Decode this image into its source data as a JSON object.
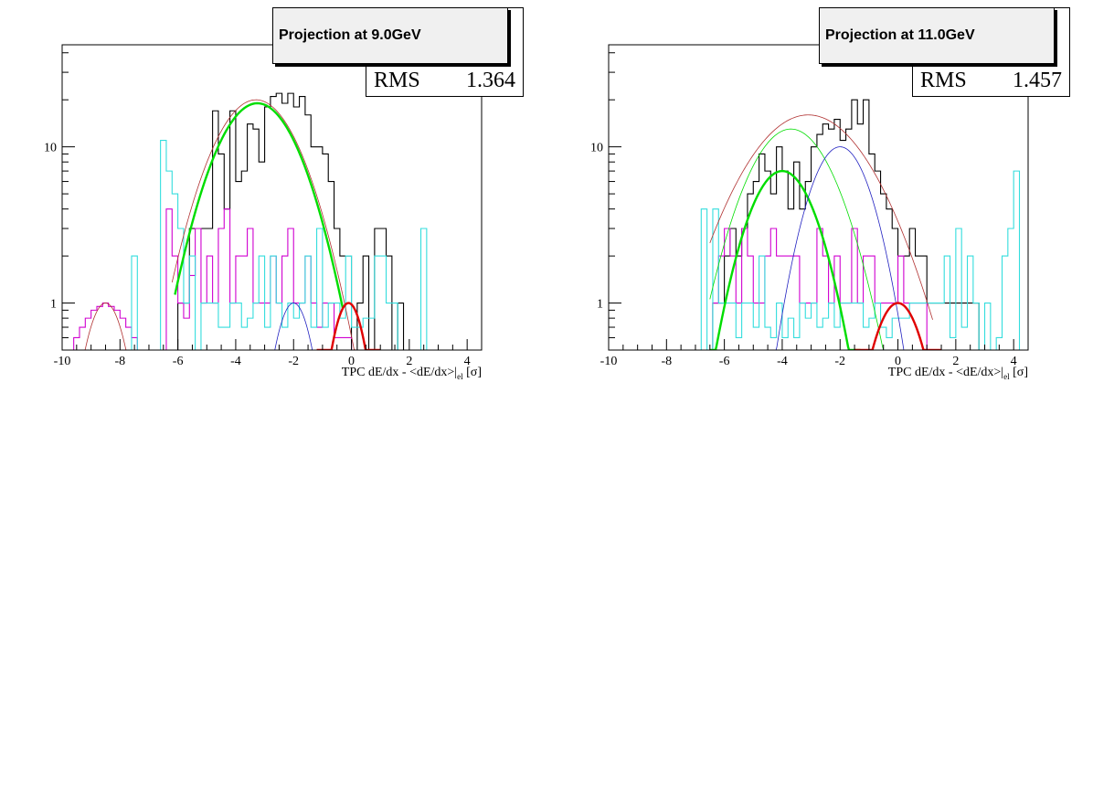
{
  "chart_data": [
    {
      "type": "line",
      "title": "Projection at 9.0GeV",
      "xlabel_main": "TPC dE/dx - <dE/dx>|",
      "xlabel_sub": "el",
      "xlabel_unit": " [σ]",
      "xlim": [
        -10,
        4.5
      ],
      "ylim": [
        0.5,
        45
      ],
      "yscale": "log",
      "xticks": [
        "-10",
        "-8",
        "-6",
        "-4",
        "-2",
        "0",
        "2",
        "4"
      ],
      "xtick_values": [
        -10,
        -8,
        -6,
        -4,
        -2,
        0,
        2,
        4
      ],
      "yticks": [
        "1",
        "10"
      ],
      "ytick_values": [
        1,
        10
      ],
      "stats": {
        "label": "RMS",
        "value": "1.364"
      },
      "histograms": [
        {
          "color": "#000000",
          "x0": -6.2,
          "width": 0.2,
          "values": [
            0.5,
            1,
            1,
            3,
            3,
            3,
            3,
            17,
            9,
            4,
            17,
            6,
            7,
            14,
            13,
            8,
            18,
            21,
            22,
            19,
            22,
            18,
            21,
            16,
            10,
            10,
            9,
            6,
            3,
            2,
            2,
            0.5,
            1,
            2,
            0.5,
            3,
            3,
            2,
            0.5,
            1,
            0.5,
            0.5,
            0.5,
            0.5,
            0.5,
            0.5,
            0.5,
            0.5,
            0.5,
            0.5,
            0.5,
            0.5
          ]
        },
        {
          "color": "#d000d0",
          "x0": -9.6,
          "width": 0.2,
          "values": [
            0.6,
            0.7,
            0.8,
            0.9,
            0.95,
            1,
            0.95,
            0.9,
            0.8,
            0.7,
            0.6,
            0.5,
            0.5,
            0.5,
            0.5,
            0.5,
            4,
            2,
            1,
            0.8,
            1.5,
            3,
            1,
            2,
            1,
            3,
            4,
            1,
            2,
            2,
            3,
            1,
            1,
            1,
            2,
            1,
            2,
            3,
            1,
            1,
            2,
            1,
            0.7,
            1,
            1,
            0.6,
            0.6,
            0.6,
            0.5,
            0.5,
            0.5,
            0.5,
            0.5,
            0.5,
            0.5,
            0.5,
            0.5,
            0.5,
            0.5,
            0.5,
            0.5
          ]
        },
        {
          "color": "#33dddd",
          "x0": -7.6,
          "width": 0.2,
          "values": [
            2,
            0.5,
            0.5,
            0.5,
            0.5,
            11,
            7,
            5,
            3,
            1,
            2,
            0.5,
            1,
            1,
            1,
            0.7,
            0.7,
            1,
            1,
            0.7,
            0.8,
            1,
            2,
            0.7,
            2,
            1,
            0.7,
            1,
            0.8,
            1,
            2,
            0.7,
            3,
            0.7,
            1,
            1,
            0.8,
            2,
            0.7,
            0.7,
            0.8,
            0.8,
            2,
            2,
            1,
            1,
            0.5,
            0.5,
            0.5,
            0.5,
            3,
            0.5,
            0.5,
            0.5,
            0.5,
            0.5,
            0.5,
            0.5,
            0.5,
            0.5,
            0.5,
            0.5,
            0.5,
            0.5
          ]
        }
      ],
      "curves": [
        {
          "color": "#b03030",
          "width": 0.8,
          "amp": 20,
          "mu": -3.3,
          "sigma": 1.25,
          "xmin": -6.2,
          "xmax": 1.2
        },
        {
          "color": "#00dd00",
          "width": 2.4,
          "amp": 19,
          "mu": -3.25,
          "sigma": 1.2,
          "xmin": -6.1,
          "xmax": -0.3
        },
        {
          "color": "#00dd00",
          "width": 0.8,
          "amp": 19,
          "mu": -3.25,
          "sigma": 1.2,
          "xmin": -6.1,
          "xmax": -0.3
        },
        {
          "color": "#2020c0",
          "width": 0.8,
          "amp": 1,
          "mu": -2.0,
          "sigma": 0.55,
          "xmin": -3.2,
          "xmax": -0.8
        },
        {
          "color": "#e00000",
          "width": 2.4,
          "amp": 1,
          "mu": -0.1,
          "sigma": 0.5,
          "xmin": -1.2,
          "xmax": 1.0
        },
        {
          "color": "#b03030",
          "width": 0.8,
          "amp": 1,
          "mu": -8.5,
          "sigma": 0.6,
          "xmin": -9.8,
          "xmax": -7.2
        }
      ]
    },
    {
      "type": "line",
      "title": "Projection at 11.0GeV",
      "xlabel_main": "TPC dE/dx - <dE/dx>|",
      "xlabel_sub": "el",
      "xlabel_unit": " [σ]",
      "xlim": [
        -10,
        4.5
      ],
      "ylim": [
        0.5,
        45
      ],
      "yscale": "log",
      "xticks": [
        "-10",
        "-8",
        "-6",
        "-4",
        "-2",
        "0",
        "2",
        "4"
      ],
      "xtick_values": [
        -10,
        -8,
        -6,
        -4,
        -2,
        0,
        2,
        4
      ],
      "yticks": [
        "1",
        "10"
      ],
      "ytick_values": [
        1,
        10
      ],
      "stats": {
        "label": "RMS",
        "value": "1.457"
      },
      "histograms": [
        {
          "color": "#000000",
          "x0": -6.4,
          "width": 0.2,
          "values": [
            1,
            1,
            2,
            3,
            2,
            3,
            5,
            6,
            9,
            7,
            5,
            10,
            7,
            4,
            8,
            4,
            6,
            10,
            12,
            14,
            13,
            15,
            11,
            13,
            20,
            14,
            20,
            9,
            7,
            5,
            4,
            3,
            2,
            2,
            3,
            2,
            2,
            1,
            1,
            1,
            1,
            1,
            1,
            1,
            1,
            1
          ]
        },
        {
          "color": "#d000d0",
          "x0": -6.4,
          "width": 0.2,
          "values": [
            1,
            2,
            3,
            2,
            1,
            3,
            2,
            1,
            1,
            2,
            3,
            2,
            2,
            2,
            2,
            1,
            1,
            1,
            3,
            2,
            1,
            2,
            1,
            1,
            3,
            1,
            2,
            2,
            1,
            1,
            1,
            1,
            2,
            1,
            1,
            1,
            1,
            0.5,
            0.5,
            0.5,
            0.5,
            0.5,
            0.5,
            0.5,
            0.5
          ]
        },
        {
          "color": "#33dddd",
          "x0": -6.8,
          "width": 0.2,
          "values": [
            4,
            0.5,
            4,
            1,
            1,
            1,
            0.6,
            1,
            1,
            0.7,
            2,
            0.7,
            0.6,
            1,
            0.6,
            0.8,
            0.6,
            1,
            0.8,
            1,
            0.7,
            0.8,
            1,
            0.7,
            1,
            1,
            1,
            1,
            0.7,
            0.8,
            1,
            0.7,
            0.6,
            0.8,
            0.8,
            0.8,
            1,
            1,
            1,
            1,
            1,
            1,
            2,
            0.6,
            3,
            0.7,
            2,
            1,
            0.5,
            1,
            0.5,
            0.6,
            2,
            3,
            7,
            0.5
          ]
        }
      ],
      "curves": [
        {
          "color": "#b03030",
          "width": 0.8,
          "amp": 16,
          "mu": -3.1,
          "sigma": 1.75,
          "xmin": -6.5,
          "xmax": 1.2
        },
        {
          "color": "#00dd00",
          "width": 0.8,
          "amp": 13,
          "mu": -3.7,
          "sigma": 1.25,
          "xmin": -6.5,
          "xmax": -0.5
        },
        {
          "color": "#00dd00",
          "width": 2.4,
          "amp": 7,
          "mu": -4.0,
          "sigma": 1.0,
          "xmin": -6.5,
          "xmax": -1.3
        },
        {
          "color": "#2020c0",
          "width": 0.8,
          "amp": 10,
          "mu": -2.0,
          "sigma": 0.9,
          "xmin": -4.3,
          "xmax": 0.2
        },
        {
          "color": "#e00000",
          "width": 2.4,
          "amp": 1,
          "mu": 0.0,
          "sigma": 0.75,
          "xmin": -1.5,
          "xmax": 1.5
        }
      ]
    }
  ]
}
